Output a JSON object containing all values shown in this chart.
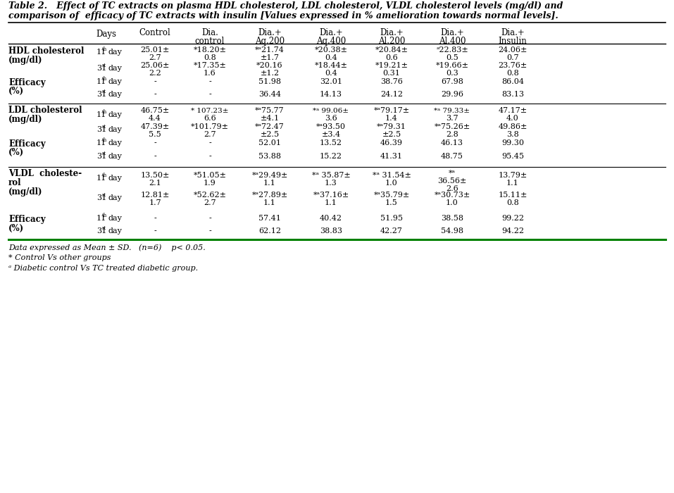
{
  "title_line1": "Table 2.   Effect of TC extracts on plasma HDL cholesterol, LDL cholesterol, VLDL cholesterol levels (mg/dl) and",
  "title_line2": "comparison of  efficacy of TC extracts with insulin [Values expressed in % amelioration towards normal levels].",
  "background": "#ffffff",
  "footnote1": "Data expressed as Mean ± SD.   (n=6)    p< 0.05.",
  "footnote2": "* Control Vs other groups",
  "footnote3": "ᵃ Diabetic control Vs TC treated diabetic group.",
  "green_line_color": "#008000",
  "black": "#000000"
}
